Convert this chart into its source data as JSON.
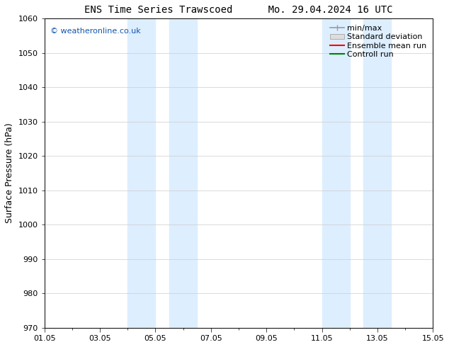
{
  "title_left": "ENS Time Series Trawscoed",
  "title_right": "Mo. 29.04.2024 16 UTC",
  "ylabel": "Surface Pressure (hPa)",
  "ylim": [
    970,
    1060
  ],
  "yticks": [
    970,
    980,
    990,
    1000,
    1010,
    1020,
    1030,
    1040,
    1050,
    1060
  ],
  "x_start_days": 0,
  "x_end_days": 14,
  "xtick_labels": [
    "01.05",
    "03.05",
    "05.05",
    "07.05",
    "09.05",
    "11.05",
    "13.05",
    "15.05"
  ],
  "xtick_positions_days": [
    0,
    2,
    4,
    6,
    8,
    10,
    12,
    14
  ],
  "shaded_bands": [
    {
      "x_start_days": 3.0,
      "x_end_days": 4.0
    },
    {
      "x_start_days": 4.5,
      "x_end_days": 5.5
    },
    {
      "x_start_days": 10.0,
      "x_end_days": 11.0
    },
    {
      "x_start_days": 11.5,
      "x_end_days": 12.5
    }
  ],
  "shade_color": "#ddeeff",
  "watermark": "© weatheronline.co.uk",
  "watermark_color": "#1155aa",
  "legend_entries": [
    "min/max",
    "Standard deviation",
    "Ensemble mean run",
    "Controll run"
  ],
  "legend_line_colors": [
    "#999999",
    "#cccccc",
    "#ff0000",
    "#008000"
  ],
  "background_color": "#ffffff",
  "grid_color": "#cccccc",
  "title_fontsize": 10,
  "ylabel_fontsize": 9,
  "tick_fontsize": 8,
  "legend_fontsize": 8,
  "watermark_fontsize": 8
}
